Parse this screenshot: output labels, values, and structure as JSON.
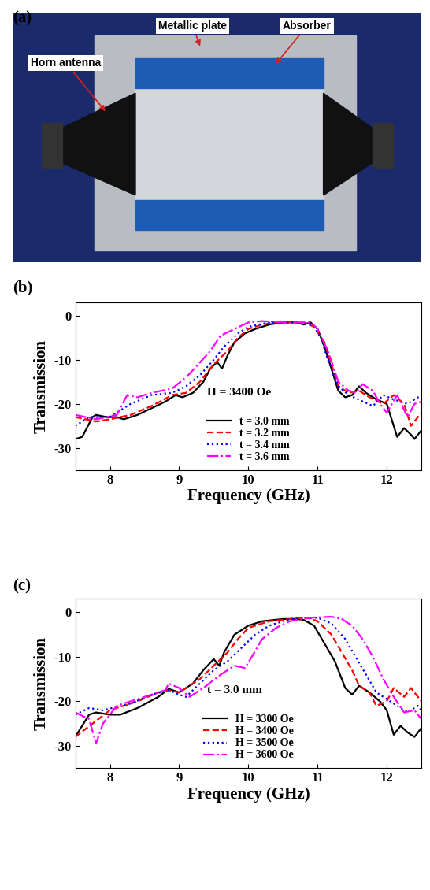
{
  "figure_a": {
    "label": "(a)",
    "annotations": [
      "Metallic plate",
      "Absorber",
      "Horn antenna"
    ]
  },
  "chart_data": [
    {
      "type": "line",
      "title": "(b)",
      "x_label": "Frequency (GHz)",
      "y_label": "Transmission",
      "annotations": [
        "H = 3400 Oe"
      ],
      "xlim": [
        7.5,
        12.5
      ],
      "xticks": [
        8,
        9,
        10,
        11,
        12
      ],
      "ylim": [
        -35,
        3
      ],
      "yticks": [
        -30,
        -20,
        -10,
        0
      ],
      "legend": "lower center",
      "grid": false,
      "series": [
        {
          "name": "t = 3.0 mm",
          "color": "#000000",
          "line_style": "solid",
          "x": [
            7.5,
            7.6,
            7.75,
            7.8,
            7.95,
            8.1,
            8.2,
            8.4,
            8.6,
            8.8,
            8.95,
            9.05,
            9.2,
            9.35,
            9.45,
            9.55,
            9.62,
            9.7,
            9.8,
            9.95,
            10.1,
            10.3,
            10.5,
            10.7,
            10.8,
            10.9,
            11.0,
            11.1,
            11.2,
            11.3,
            11.4,
            11.5,
            11.6,
            11.7,
            11.85,
            12.0,
            12.1,
            12.15,
            12.25,
            12.35,
            12.4,
            12.5
          ],
          "values": [
            -28,
            -27.5,
            -23,
            -22.5,
            -23,
            -23,
            -23.5,
            -22.5,
            -21,
            -19.5,
            -18,
            -18.5,
            -17.5,
            -15,
            -12,
            -10.5,
            -12,
            -9,
            -6,
            -4,
            -3,
            -2,
            -1.5,
            -1.5,
            -2,
            -1.5,
            -3,
            -7,
            -12,
            -17,
            -18.5,
            -18,
            -16,
            -17.5,
            -19,
            -20,
            -25,
            -27.5,
            -25.5,
            -27,
            -28,
            -26
          ]
        },
        {
          "name": "t = 3.2 mm",
          "color": "#ff0000",
          "line_style": "dashed",
          "x": [
            7.5,
            7.8,
            8.0,
            8.3,
            8.6,
            8.9,
            9.1,
            9.3,
            9.5,
            9.7,
            9.85,
            10.0,
            10.2,
            10.4,
            10.6,
            10.8,
            10.95,
            11.1,
            11.2,
            11.3,
            11.45,
            11.6,
            11.75,
            11.95,
            12.1,
            12.25,
            12.35,
            12.5
          ],
          "values": [
            -23,
            -24,
            -23.5,
            -22.5,
            -20.5,
            -18,
            -17.5,
            -15,
            -11,
            -8,
            -5,
            -3,
            -2,
            -1.5,
            -1.5,
            -1.5,
            -2.5,
            -6,
            -11,
            -16,
            -17.5,
            -17,
            -18.5,
            -20,
            -18,
            -20,
            -25,
            -22
          ]
        },
        {
          "name": "t = 3.4 mm",
          "color": "#0000ff",
          "line_style": "dotted",
          "x": [
            7.5,
            7.7,
            8.0,
            8.3,
            8.6,
            8.9,
            9.1,
            9.3,
            9.5,
            9.65,
            9.85,
            10.0,
            10.3,
            10.8,
            10.95,
            11.05,
            11.15,
            11.3,
            11.45,
            11.8,
            11.95,
            12.1,
            12.3,
            12.45,
            12.5
          ],
          "values": [
            -25,
            -23,
            -23,
            -20,
            -18,
            -17.5,
            -16,
            -13.5,
            -10,
            -7,
            -4,
            -2.5,
            -1.5,
            -1.5,
            -2.5,
            -5,
            -10,
            -16,
            -18,
            -20.5,
            -18,
            -19,
            -20,
            -18.5,
            -18.5
          ]
        },
        {
          "name": "t = 3.6 mm",
          "color": "#ff00ff",
          "line_style": "dashdot",
          "x": [
            7.5,
            7.8,
            8.1,
            8.25,
            8.4,
            8.6,
            8.9,
            9.1,
            9.25,
            9.45,
            9.6,
            9.8,
            10.0,
            10.2,
            10.5,
            10.9,
            11.0,
            11.15,
            11.3,
            11.45,
            11.55,
            11.65,
            11.8,
            11.9,
            12.0,
            12.15,
            12.3,
            12.4,
            12.5
          ],
          "values": [
            -22.5,
            -23.5,
            -22.5,
            -18,
            -18.5,
            -17.5,
            -16.5,
            -14,
            -11.5,
            -8,
            -4.5,
            -3,
            -1.5,
            -1.2,
            -1.5,
            -1.5,
            -3,
            -8,
            -15,
            -17,
            -17.5,
            -15.5,
            -17,
            -20,
            -22,
            -18,
            -23,
            -20,
            -19.5
          ]
        }
      ]
    },
    {
      "type": "line",
      "title": "(c)",
      "x_label": "Frequency (GHz)",
      "y_label": "Transmission",
      "annotations": [
        "t = 3.0 mm"
      ],
      "xlim": [
        7.5,
        12.5
      ],
      "xticks": [
        8,
        9,
        10,
        11,
        12
      ],
      "ylim": [
        -35,
        3
      ],
      "yticks": [
        -30,
        -20,
        -10,
        0
      ],
      "legend": "lower center",
      "grid": false,
      "series": [
        {
          "name": "H = 3300 Oe",
          "color": "#000000",
          "line_style": "solid",
          "x": [
            7.5,
            7.7,
            7.8,
            8.0,
            8.15,
            8.4,
            8.7,
            8.85,
            9.0,
            9.2,
            9.35,
            9.5,
            9.58,
            9.65,
            9.8,
            10.0,
            10.2,
            10.5,
            10.7,
            10.8,
            10.95,
            11.1,
            11.25,
            11.4,
            11.5,
            11.6,
            11.75,
            11.9,
            12.0,
            12.1,
            12.2,
            12.3,
            12.4,
            12.5
          ],
          "values": [
            -28,
            -23,
            -22.5,
            -23,
            -23,
            -21.5,
            -19,
            -17.2,
            -18,
            -16,
            -13,
            -10.5,
            -12,
            -9,
            -5,
            -3,
            -2,
            -1.5,
            -1.5,
            -1.7,
            -3,
            -7,
            -11,
            -17,
            -18.5,
            -16.5,
            -18,
            -20,
            -22,
            -27.5,
            -25.5,
            -27,
            -28,
            -26
          ]
        },
        {
          "name": "H = 3400 Oe",
          "color": "#ff0000",
          "line_style": "dashed",
          "x": [
            7.5,
            7.75,
            8.0,
            8.4,
            8.7,
            8.85,
            9.0,
            9.3,
            9.5,
            9.7,
            9.85,
            10.0,
            10.3,
            10.6,
            10.85,
            11.0,
            11.2,
            11.35,
            11.5,
            11.6,
            11.75,
            11.85,
            12.0,
            12.1,
            12.25,
            12.35,
            12.5
          ],
          "values": [
            -28,
            -25,
            -22,
            -20,
            -18,
            -17.5,
            -18,
            -15,
            -12,
            -9,
            -6,
            -3.5,
            -2,
            -1.5,
            -1.2,
            -2,
            -5,
            -9,
            -13,
            -16.5,
            -18,
            -21,
            -20,
            -17,
            -19,
            -17,
            -20
          ]
        },
        {
          "name": "H = 3500 Oe",
          "color": "#0000ff",
          "line_style": "dotted",
          "x": [
            7.5,
            7.7,
            7.9,
            8.3,
            8.6,
            8.85,
            9.0,
            9.1,
            9.3,
            9.5,
            9.7,
            9.9,
            10.1,
            10.3,
            10.6,
            11.0,
            11.2,
            11.4,
            11.55,
            11.7,
            11.85,
            12.0,
            12.15,
            12.3,
            12.45,
            12.5
          ],
          "values": [
            -23,
            -21.5,
            -22,
            -20.5,
            -18.5,
            -17.5,
            -18.5,
            -19,
            -16,
            -13,
            -11,
            -8,
            -5,
            -3,
            -1.5,
            -1.2,
            -2.5,
            -6,
            -10,
            -14,
            -18,
            -19.5,
            -21,
            -22.5,
            -21,
            -22
          ]
        },
        {
          "name": "H = 3600 Oe",
          "color": "#ff00ff",
          "line_style": "dashdot",
          "x": [
            7.5,
            7.7,
            7.8,
            7.9,
            8.1,
            8.5,
            8.8,
            8.85,
            9.0,
            9.15,
            9.35,
            9.6,
            9.8,
            9.95,
            10.05,
            10.2,
            10.4,
            10.6,
            10.9,
            11.2,
            11.35,
            11.5,
            11.65,
            11.8,
            11.95,
            12.1,
            12.25,
            12.4,
            12.5
          ],
          "values": [
            -22.5,
            -24,
            -29.5,
            -25,
            -21,
            -19,
            -17.5,
            -16,
            -17,
            -19,
            -17,
            -14,
            -12,
            -12.5,
            -10,
            -6,
            -3.5,
            -2,
            -1.2,
            -1,
            -1.5,
            -3,
            -6,
            -10,
            -15,
            -19,
            -22.5,
            -22,
            -24
          ]
        }
      ]
    }
  ]
}
